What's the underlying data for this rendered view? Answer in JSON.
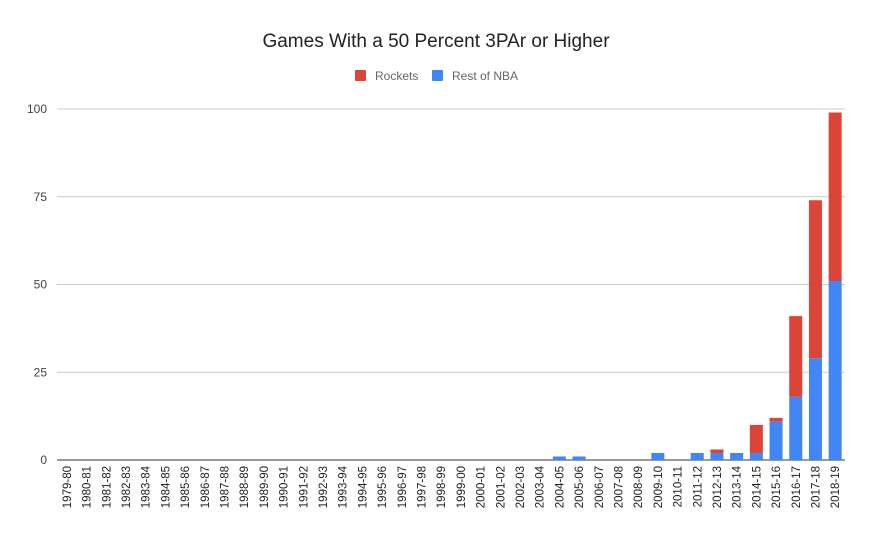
{
  "chart_data": {
    "type": "bar",
    "stacked": true,
    "title": "Games With a 50 Percent 3PAr or Higher",
    "xlabel": "",
    "ylabel": "",
    "ylim": [
      0,
      100
    ],
    "yticks": [
      0,
      25,
      50,
      75,
      100
    ],
    "grid": true,
    "legend_position": "top",
    "categories": [
      "1979-80",
      "1980-81",
      "1981-82",
      "1982-83",
      "1983-84",
      "1984-85",
      "1985-86",
      "1986-87",
      "1987-88",
      "1988-89",
      "1989-90",
      "1990-91",
      "1991-92",
      "1992-93",
      "1993-94",
      "1994-95",
      "1995-96",
      "1996-97",
      "1997-98",
      "1998-99",
      "1999-00",
      "2000-01",
      "2001-02",
      "2002-03",
      "2003-04",
      "2004-05",
      "2005-06",
      "2006-07",
      "2007-08",
      "2008-09",
      "2009-10",
      "2010-11",
      "2011-12",
      "2012-13",
      "2013-14",
      "2014-15",
      "2015-16",
      "2016-17",
      "2017-18",
      "2018-19"
    ],
    "series": [
      {
        "name": "Rest of NBA",
        "color": "#4285f4",
        "values": [
          0,
          0,
          0,
          0,
          0,
          0,
          0,
          0,
          0,
          0,
          0,
          0,
          0,
          0,
          0,
          0,
          0,
          0,
          0,
          0,
          0,
          0,
          0,
          0,
          0,
          1,
          1,
          0,
          0,
          0,
          2,
          0,
          2,
          2,
          2,
          2,
          11,
          18,
          29,
          51
        ]
      },
      {
        "name": "Rockets",
        "color": "#db4437",
        "values": [
          0,
          0,
          0,
          0,
          0,
          0,
          0,
          0,
          0,
          0,
          0,
          0,
          0,
          0,
          0,
          0,
          0,
          0,
          0,
          0,
          0,
          0,
          0,
          0,
          0,
          0,
          0,
          0,
          0,
          0,
          0,
          0,
          0,
          1,
          0,
          8,
          1,
          23,
          45,
          48
        ]
      }
    ]
  }
}
